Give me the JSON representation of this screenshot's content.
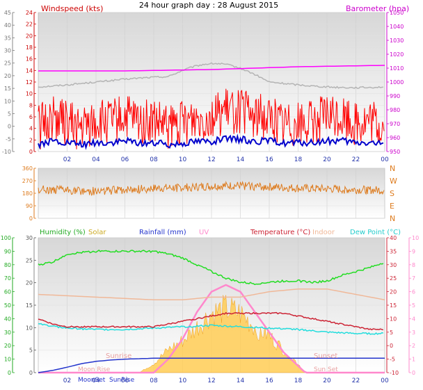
{
  "title": "24 hour graph day : 28 August 2015",
  "panels": {
    "wind": {
      "label_left": "Windspeed (kts)",
      "label_right": "Barometer (hpa)",
      "left_outer_ticks": [
        "45",
        "40",
        "35",
        "30",
        "25",
        "20",
        "15",
        "10",
        "5",
        "0",
        "-5",
        "-10"
      ],
      "left_inner_ticks": [
        "24",
        "22",
        "20",
        "18",
        "16",
        "14",
        "12",
        "10",
        "8",
        "6",
        "4",
        "2",
        "0"
      ],
      "right_ticks": [
        "1050",
        "1040",
        "1030",
        "1020",
        "1010",
        "1000",
        "990",
        "980",
        "970",
        "960",
        "950"
      ]
    },
    "direction": {
      "left_ticks": [
        "360",
        "270",
        "180",
        "90",
        "0"
      ],
      "right_labels": [
        "N",
        "W",
        "S",
        "E",
        "N"
      ]
    },
    "temp": {
      "legend": {
        "humidity": "Humidity (%)",
        "solar": "Solar",
        "rainfall": "Rainfall (mm)",
        "uv": "UV",
        "temperature": "Temperature (°C)",
        "indoor": "Indoor",
        "dewpoint": "Dew Point (°C)"
      },
      "left_outer_ticks": [
        "100",
        "90",
        "80",
        "70",
        "60",
        "50",
        "40",
        "30",
        "20",
        "10",
        "0"
      ],
      "left_inner_ticks": [
        "30",
        "25",
        "20",
        "15",
        "10",
        "5",
        "0"
      ],
      "right_inner_ticks": [
        "40",
        "35",
        "30",
        "25",
        "20",
        "15",
        "10",
        "5",
        "0",
        "-5",
        "-10"
      ],
      "right_outer_ticks": [
        "10",
        "9",
        "8",
        "7",
        "6",
        "5",
        "4",
        "3",
        "2",
        "1",
        "0"
      ],
      "annotations": {
        "moon_rise": "Moon Rise",
        "moon_set": "MoonSet",
        "sunrise": "Sunrise",
        "sunrise_bottom": "SunRise",
        "sunset": "Sunset",
        "sunset_bottom": "Sun Set"
      }
    }
  },
  "x_ticks": [
    "02",
    "04",
    "06",
    "08",
    "10",
    "12",
    "14",
    "16",
    "18",
    "20",
    "22",
    "00"
  ],
  "colors": {
    "windspeed": "#ff0000",
    "wind_avg": "#0000cc",
    "barometer": "#ff00ff",
    "baro_gray": "#b4b4b4",
    "direction": "#dd7a1c",
    "humidity": "#22dd22",
    "solar": "#ffcc33",
    "rainfall": "#2233cc",
    "uv": "#ff88cc",
    "temperature": "#cc2233",
    "indoor": "#f0b898",
    "dewpoint": "#22dddd"
  },
  "chart_data": [
    {
      "type": "line",
      "title": "24 hour graph day : 28 August 2015",
      "xlabel": "",
      "x_range_hours": [
        0,
        24
      ],
      "ylabel_left": "Windspeed (kts)",
      "ylabel_right": "Barometer (hpa)",
      "ylim_left": [
        0,
        24
      ],
      "ylim_right": [
        950,
        1050
      ],
      "series": [
        {
          "name": "Windspeed (kts)",
          "axis": "left",
          "hours": [
            0,
            1,
            2,
            3,
            4,
            5,
            6,
            7,
            8,
            9,
            10,
            11,
            12,
            13,
            14,
            15,
            16,
            17,
            18,
            19,
            20,
            21,
            22,
            23,
            24
          ],
          "values": [
            4,
            6,
            5,
            4,
            5,
            5,
            6,
            5,
            5,
            4,
            5,
            6,
            6,
            7,
            7,
            6,
            6,
            5,
            5,
            5,
            6,
            6,
            5,
            5,
            4
          ],
          "min": 0,
          "max": 12
        },
        {
          "name": "Barometer (hpa)",
          "axis": "right",
          "hours": [
            0,
            6,
            12,
            18,
            24
          ],
          "values": [
            1008,
            1008,
            1009,
            1011,
            1012
          ]
        }
      ]
    },
    {
      "type": "scatter",
      "ylabel_left": "",
      "ylim": [
        0,
        360
      ],
      "series": [
        {
          "name": "Wind direction",
          "hours": [
            0,
            2,
            4,
            6,
            8,
            10,
            12,
            14,
            16,
            18,
            20,
            22,
            24
          ],
          "values": [
            210,
            200,
            195,
            205,
            215,
            220,
            230,
            235,
            225,
            215,
            210,
            205,
            200
          ]
        }
      ]
    },
    {
      "type": "line",
      "x_range_hours": [
        0,
        24
      ],
      "series": [
        {
          "name": "Humidity (%)",
          "axis": "left_outer",
          "ylim": [
            0,
            100
          ],
          "hours": [
            0,
            1,
            2,
            4,
            6,
            7,
            8,
            9,
            10,
            11,
            12,
            13,
            14,
            15,
            16,
            17,
            18,
            19,
            20,
            21,
            22,
            23,
            24
          ],
          "values": [
            80,
            82,
            88,
            90,
            90,
            90,
            90,
            88,
            85,
            80,
            75,
            70,
            67,
            66,
            67,
            68,
            68,
            67,
            68,
            72,
            75,
            78,
            82
          ]
        },
        {
          "name": "Solar",
          "axis": "left_inner",
          "ylim": [
            0,
            30
          ],
          "hours": [
            0,
            7,
            8,
            9,
            10,
            11,
            12,
            13,
            14,
            15,
            16,
            17,
            18,
            18.5,
            24
          ],
          "values": [
            0,
            0,
            2,
            5,
            7,
            10,
            13,
            14,
            13,
            10,
            8,
            5,
            2,
            0,
            0
          ]
        },
        {
          "name": "Rainfall (mm)",
          "axis": "left_inner",
          "ylim": [
            0,
            30
          ],
          "hours": [
            0,
            1,
            2,
            3,
            4,
            5,
            6,
            7,
            8,
            24
          ],
          "values": [
            0,
            0.5,
            1.2,
            2,
            2.5,
            2.8,
            3,
            3.1,
            3.2,
            3.2
          ]
        },
        {
          "name": "UV",
          "axis": "right_outer",
          "ylim": [
            0,
            10
          ],
          "hours": [
            0,
            8,
            9,
            10,
            11,
            12,
            13,
            14,
            15,
            16,
            17,
            18,
            18.5,
            24
          ],
          "values": [
            0,
            0,
            1,
            2.5,
            4.5,
            6,
            6.5,
            6,
            4.5,
            3,
            1.5,
            0.5,
            0,
            0
          ]
        },
        {
          "name": "Temperature (°C)",
          "axis": "right_inner",
          "ylim": [
            -10,
            40
          ],
          "hours": [
            0,
            1,
            2,
            4,
            6,
            7,
            8,
            9,
            10,
            11,
            12,
            13,
            14,
            15,
            16,
            17,
            18,
            19,
            20,
            21,
            22,
            23,
            24
          ],
          "values": [
            10,
            8,
            7,
            7,
            7,
            7,
            7,
            8,
            9,
            10,
            11,
            12,
            12,
            12,
            12,
            12,
            11,
            10,
            9,
            8,
            7,
            6,
            6
          ]
        },
        {
          "name": "Indoor",
          "axis": "right_inner",
          "ylim": [
            -10,
            40
          ],
          "hours": [
            0,
            4,
            8,
            10,
            12,
            14,
            16,
            18,
            20,
            22,
            24
          ],
          "values": [
            19,
            18,
            17,
            17,
            18,
            18,
            20,
            21,
            21,
            19,
            17
          ]
        },
        {
          "name": "Dew Point (°C)",
          "axis": "right_inner",
          "ylim": [
            -10,
            40
          ],
          "hours": [
            0,
            2,
            4,
            6,
            8,
            10,
            12,
            14,
            16,
            18,
            20,
            22,
            24
          ],
          "values": [
            8,
            6.5,
            6,
            6,
            6.5,
            7,
            7.5,
            7,
            6.5,
            6,
            5,
            4.5,
            4.5
          ]
        }
      ]
    }
  ]
}
